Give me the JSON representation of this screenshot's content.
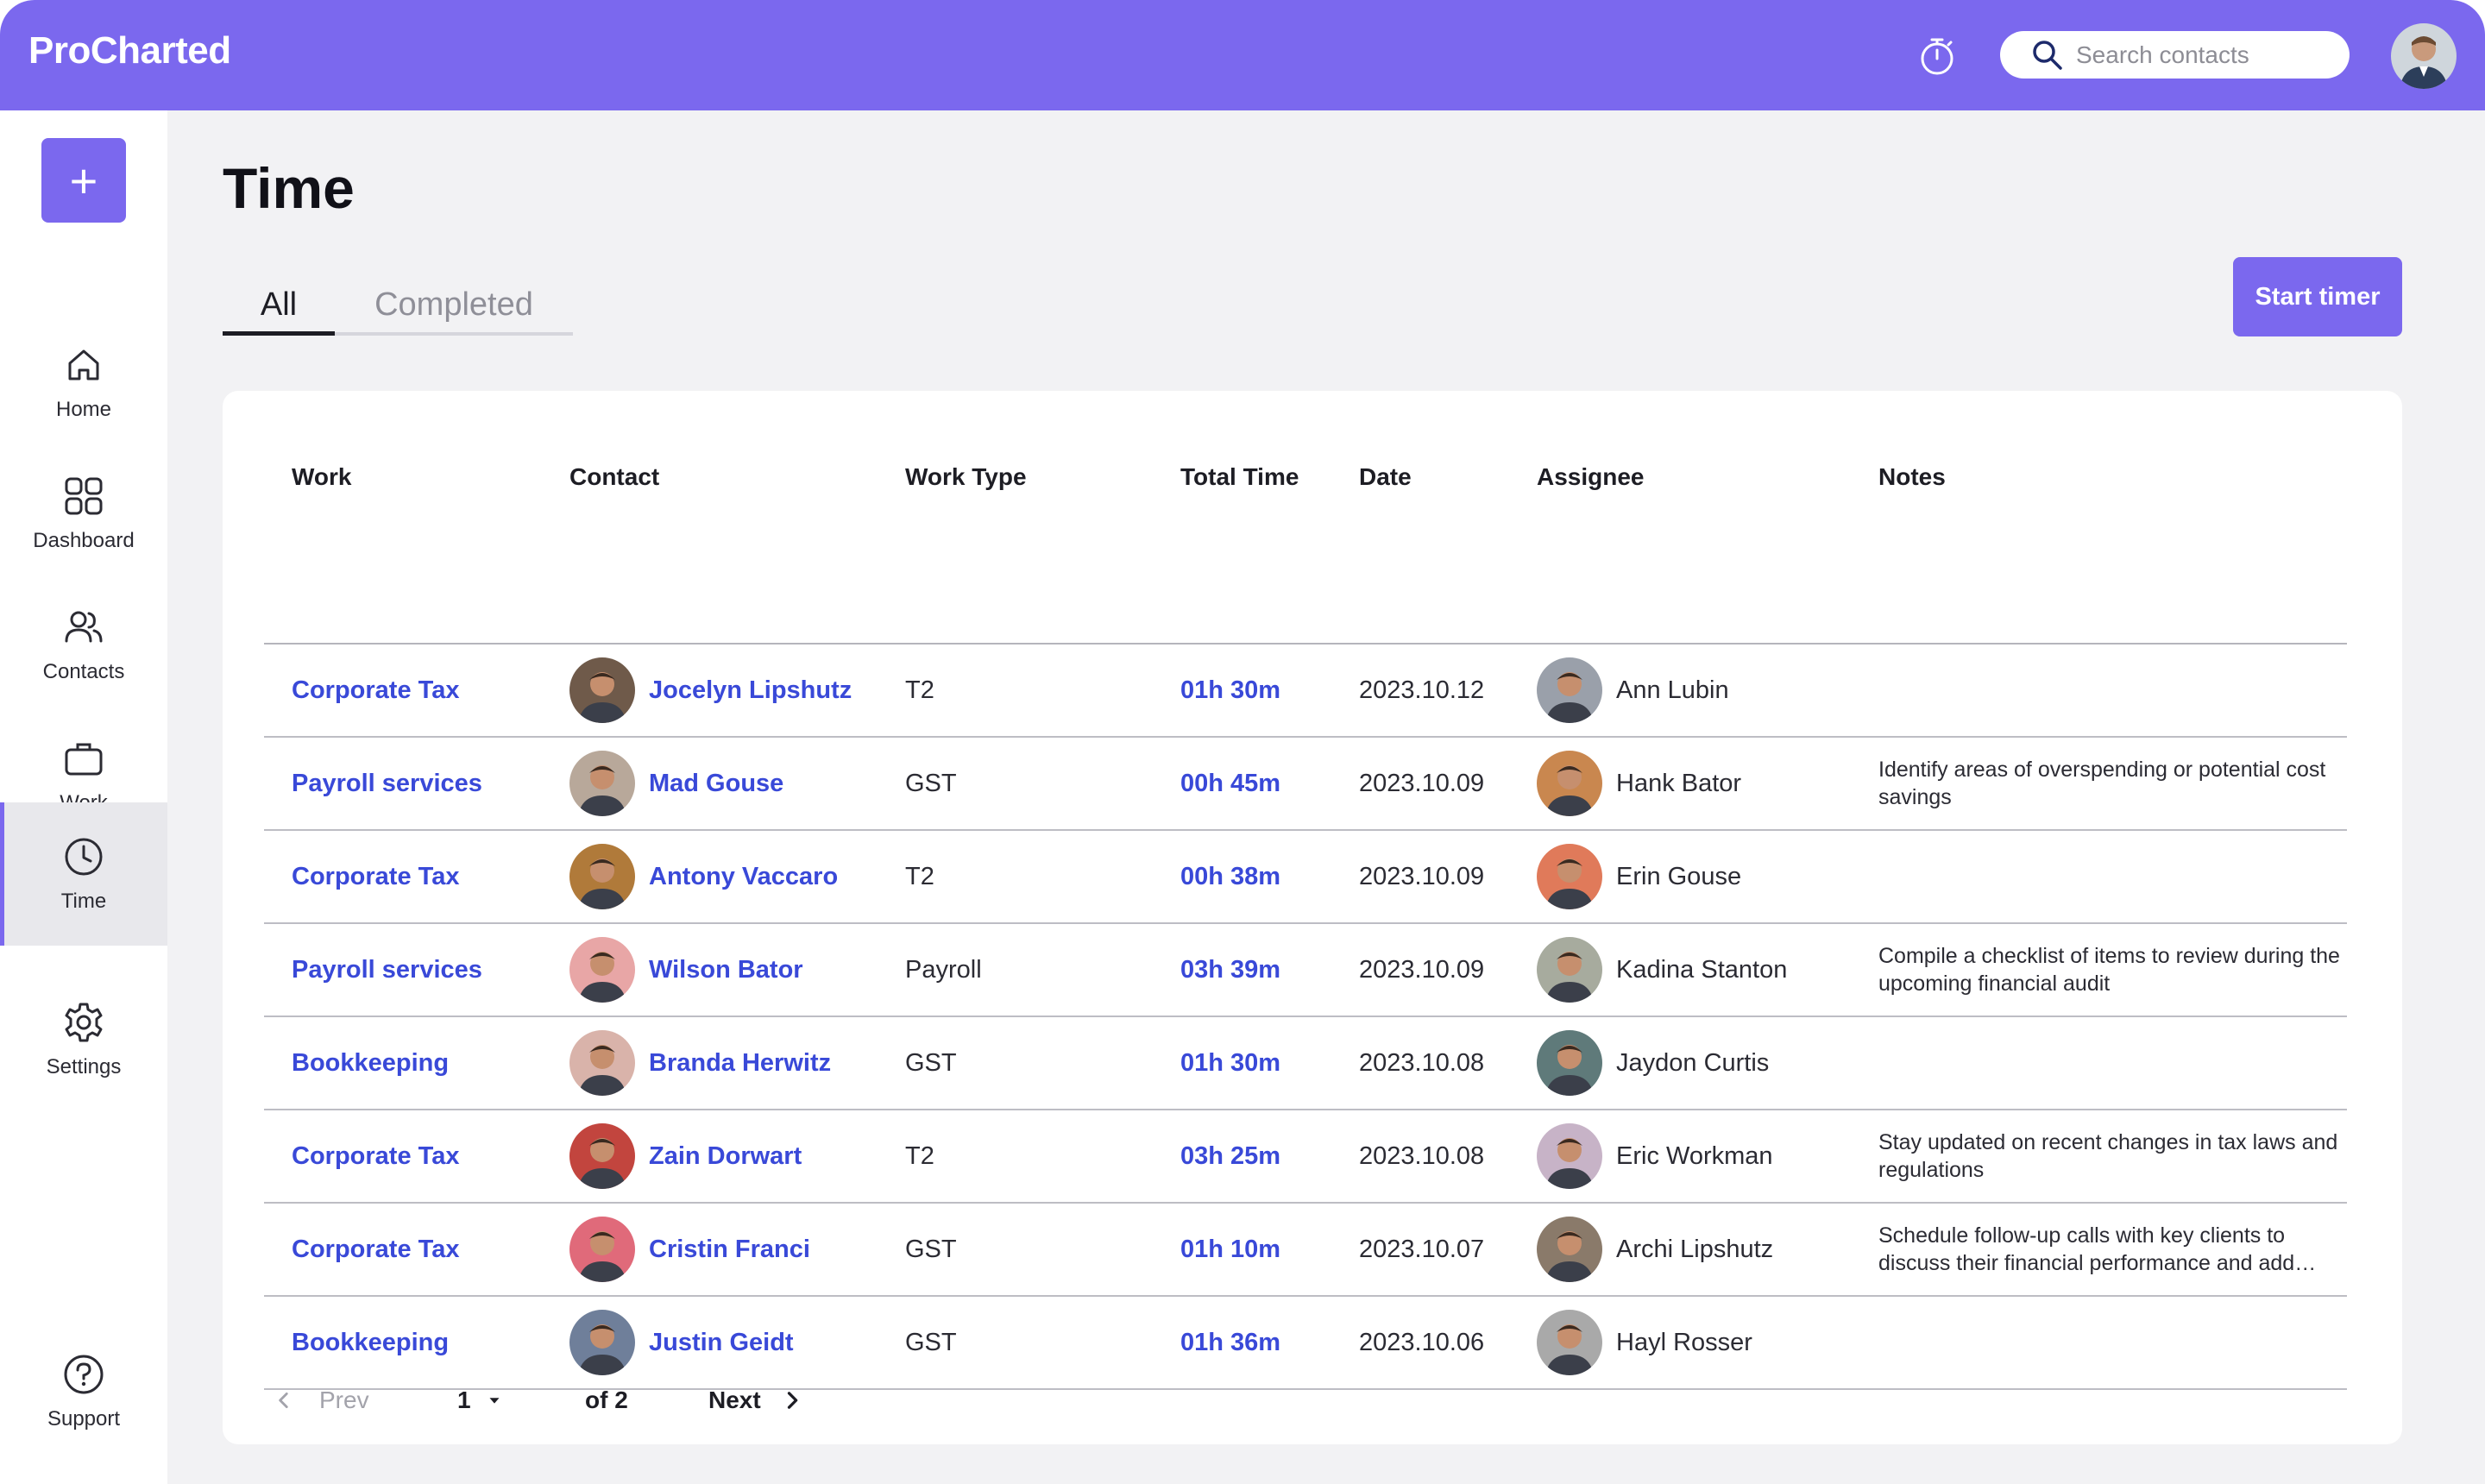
{
  "app": {
    "brand": "ProCharted"
  },
  "topbar": {
    "search_placeholder": "Search contacts",
    "timer_icon": "stopwatch-icon",
    "user_avatar_color": "#8a7a6a"
  },
  "sidebar": {
    "add_label": "+",
    "items": [
      {
        "label": "Home",
        "icon": "home-icon"
      },
      {
        "label": "Dashboard",
        "icon": "dashboard-icon"
      },
      {
        "label": "Contacts",
        "icon": "contacts-icon"
      },
      {
        "label": "Work",
        "icon": "briefcase-icon"
      },
      {
        "label": "Time",
        "icon": "clock-icon",
        "active": true
      },
      {
        "label": "Settings",
        "icon": "gear-icon"
      },
      {
        "label": "Support",
        "icon": "help-icon"
      }
    ]
  },
  "page": {
    "title": "Time",
    "tabs": [
      {
        "label": "All",
        "active": true
      },
      {
        "label": "Completed",
        "active": false
      }
    ],
    "start_timer_label": "Start timer"
  },
  "table": {
    "columns": [
      "Work",
      "Contact",
      "Work Type",
      "Total Time",
      "Date",
      "Assignee",
      "Notes"
    ],
    "rows": [
      {
        "work": "Corporate Tax",
        "contact": "Jocelyn Lipshutz",
        "contact_color": "#6f5a4a",
        "work_type": "T2",
        "total_time": "01h 30m",
        "date": "2023.10.12",
        "assignee": "Ann Lubin",
        "assignee_color": "#9aa0aa",
        "notes": ""
      },
      {
        "work": "Payroll services",
        "contact": "Mad Gouse",
        "contact_color": "#b8a89a",
        "work_type": "GST",
        "total_time": "00h 45m",
        "date": "2023.10.09",
        "assignee": "Hank Bator",
        "assignee_color": "#c9874f",
        "notes": "Identify areas of overspending or potential cost savings"
      },
      {
        "work": "Corporate Tax",
        "contact": "Antony Vaccaro",
        "contact_color": "#b07a3a",
        "work_type": "T2",
        "total_time": "00h 38m",
        "date": "2023.10.09",
        "assignee": "Erin Gouse",
        "assignee_color": "#e07a5a",
        "notes": ""
      },
      {
        "work": "Payroll services",
        "contact": "Wilson Bator",
        "contact_color": "#e8a6a6",
        "work_type": "Payroll",
        "total_time": "03h 39m",
        "date": "2023.10.09",
        "assignee": "Kadina Stanton",
        "assignee_color": "#a7ab9e",
        "notes": "Compile a checklist of items to review during the upcoming financial audit"
      },
      {
        "work": "Bookkeeping",
        "contact": "Branda Herwitz",
        "contact_color": "#d9b3aa",
        "work_type": "GST",
        "total_time": "01h 30m",
        "date": "2023.10.08",
        "assignee": "Jaydon Curtis",
        "assignee_color": "#5f7a7a",
        "notes": ""
      },
      {
        "work": "Corporate Tax",
        "contact": "Zain Dorwart",
        "contact_color": "#c2453e",
        "work_type": "T2",
        "total_time": "03h 25m",
        "date": "2023.10.08",
        "assignee": "Eric Workman",
        "assignee_color": "#c7b3c7",
        "notes": "Stay updated on recent changes in tax laws and regulations"
      },
      {
        "work": "Corporate Tax",
        "contact": "Cristin Franci",
        "contact_color": "#e06a7a",
        "work_type": "GST",
        "total_time": "01h 10m",
        "date": "2023.10.07",
        "assignee": "Archi Lipshutz",
        "assignee_color": "#8a7a6a",
        "notes": "Schedule follow-up calls with key clients to discuss their financial performance and add…"
      },
      {
        "work": "Bookkeeping",
        "contact": "Justin Geidt",
        "contact_color": "#6f7f9a",
        "work_type": "GST",
        "total_time": "01h 36m",
        "date": "2023.10.06",
        "assignee": "Hayl Rosser",
        "assignee_color": "#a9a9a9",
        "notes": ""
      }
    ]
  },
  "pagination": {
    "prev_label": "Prev",
    "page_value": "1",
    "of_label": "of 2",
    "next_label": "Next"
  },
  "colors": {
    "accent": "#7B68EE",
    "link": "#3949D8",
    "background": "#F2F2F4"
  }
}
